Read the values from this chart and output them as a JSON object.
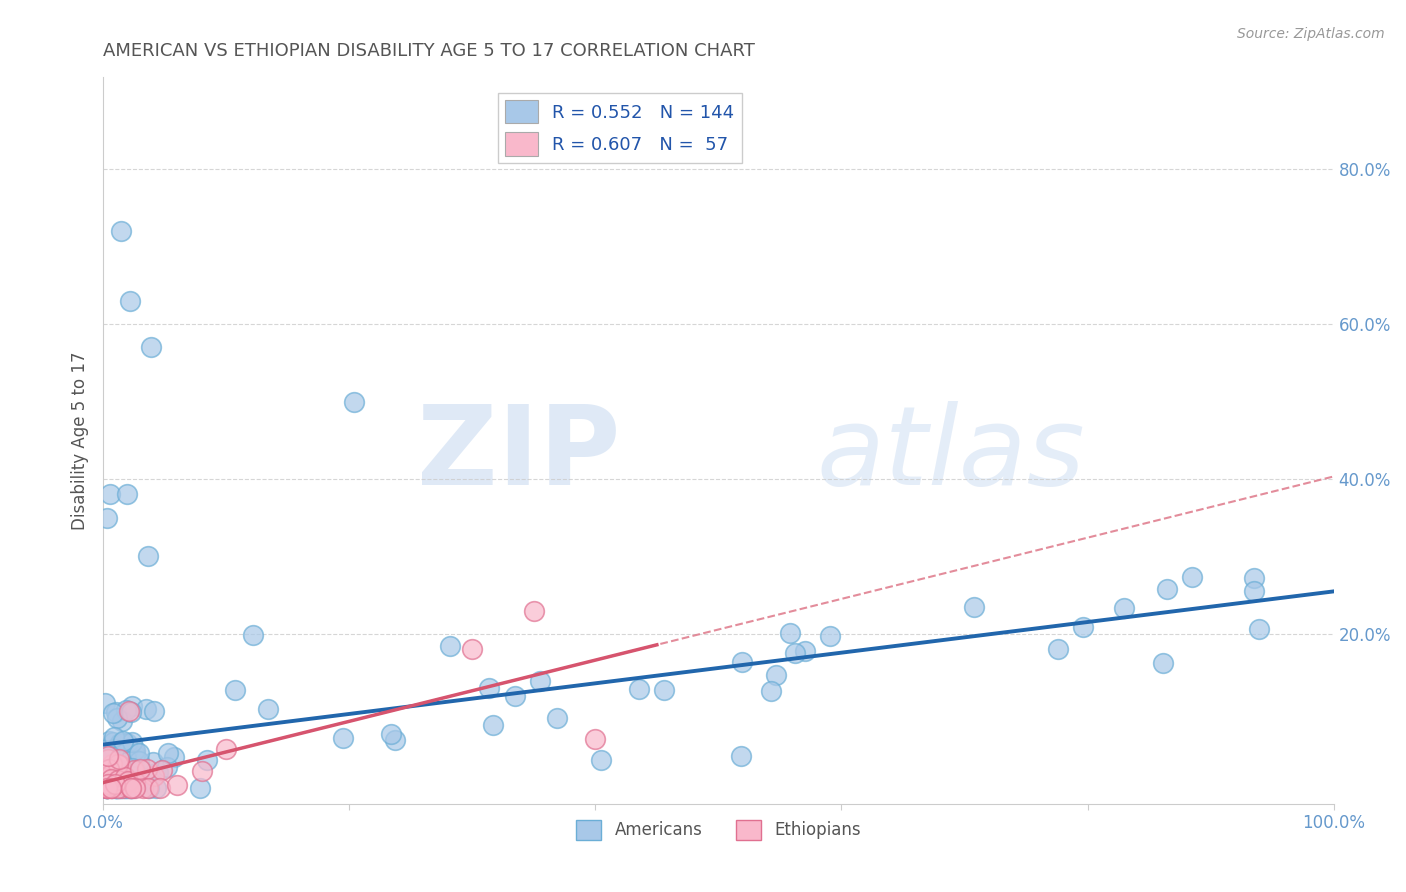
{
  "title": "AMERICAN VS ETHIOPIAN DISABILITY AGE 5 TO 17 CORRELATION CHART",
  "source_text": "Source: ZipAtlas.com",
  "ylabel": "Disability Age 5 to 17",
  "xlim": [
    0,
    1
  ],
  "ylim": [
    -0.02,
    0.92
  ],
  "american_R": 0.552,
  "american_N": 144,
  "ethiopian_R": 0.607,
  "ethiopian_N": 57,
  "american_color": "#a8c8e8",
  "american_edge_color": "#6baed6",
  "american_line_color": "#2166ac",
  "ethiopian_color": "#f9b8cb",
  "ethiopian_edge_color": "#e07090",
  "ethiopian_line_color": "#d6546e",
  "dashed_line_color": "#e07090",
  "background_color": "#ffffff",
  "watermark_color": "#ddeeff",
  "watermark_alpha": 0.5,
  "grid_color": "#cccccc",
  "title_color": "#555555",
  "tick_color": "#6699cc",
  "source_color": "#999999"
}
